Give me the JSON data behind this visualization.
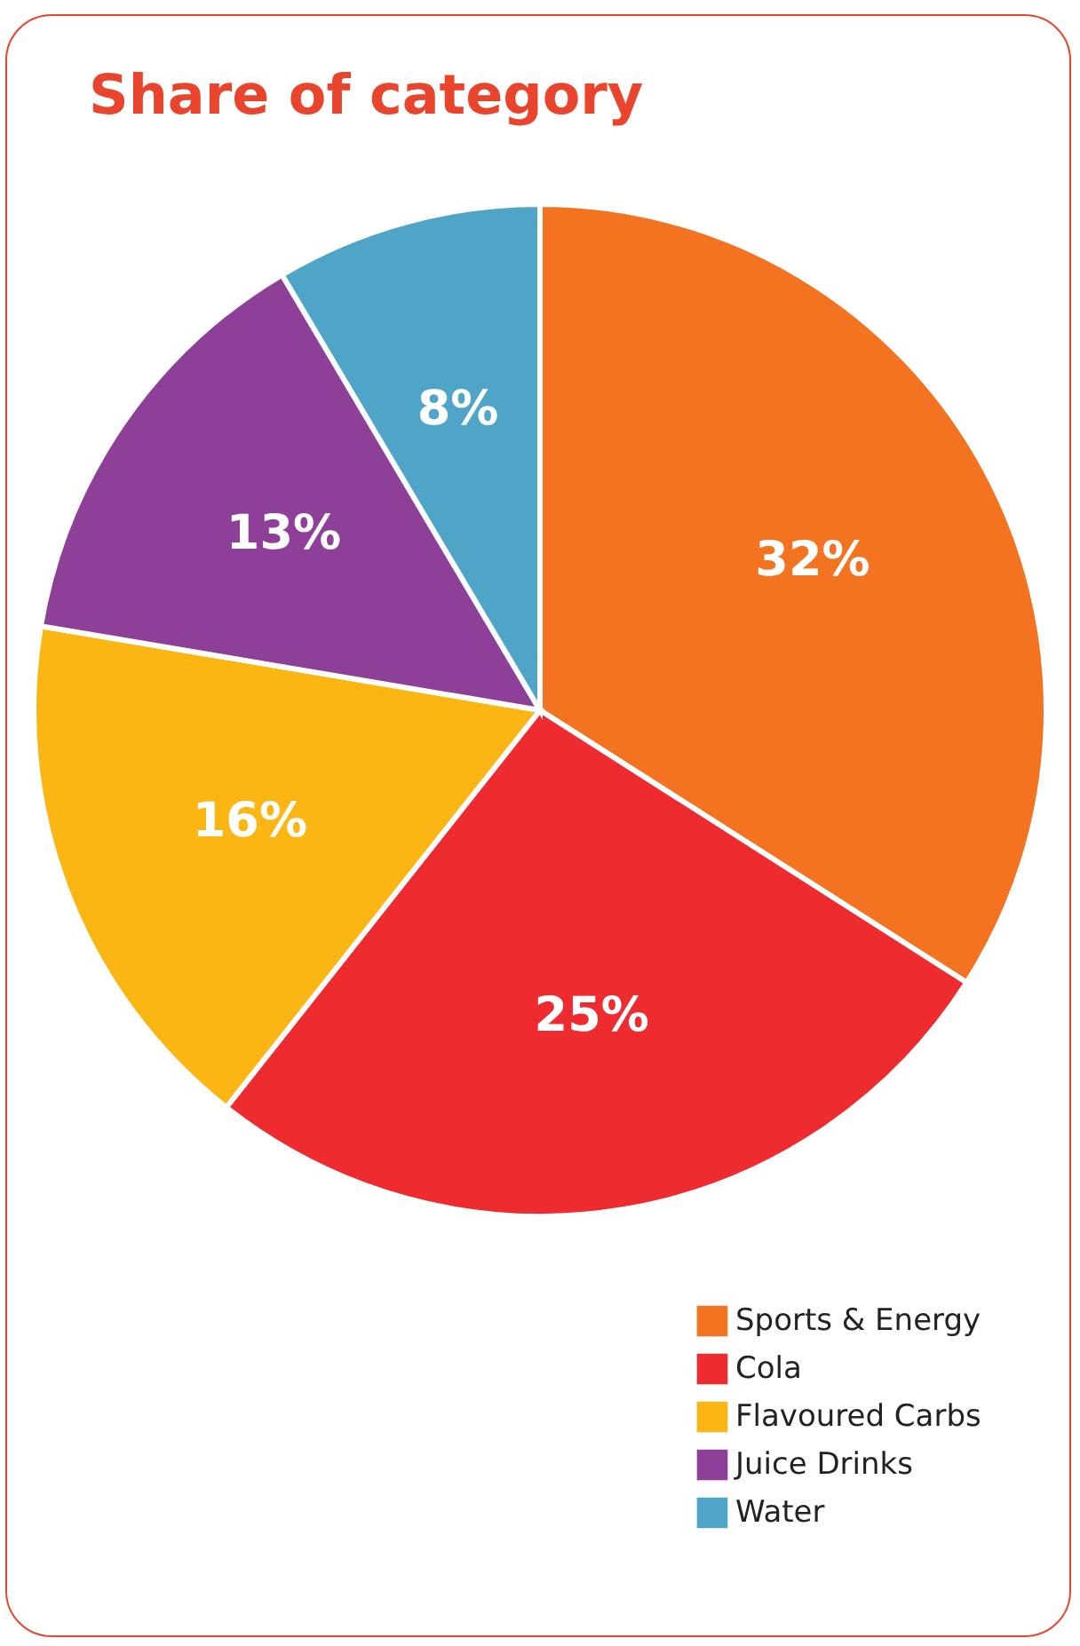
{
  "chart_data": {
    "type": "pie",
    "title": "Share of category",
    "categories": [
      "Sports & Energy",
      "Cola",
      "Flavoured Carbs",
      "Juice Drinks",
      "Water"
    ],
    "values": [
      32,
      25,
      16,
      13,
      8
    ],
    "colors": [
      "#f47321",
      "#ee2b2f",
      "#fbb614",
      "#8e3f98",
      "#4fa5c8"
    ],
    "value_labels": [
      "32%",
      "25%",
      "16%",
      "13%",
      "8%"
    ],
    "legend": "bottom right"
  }
}
